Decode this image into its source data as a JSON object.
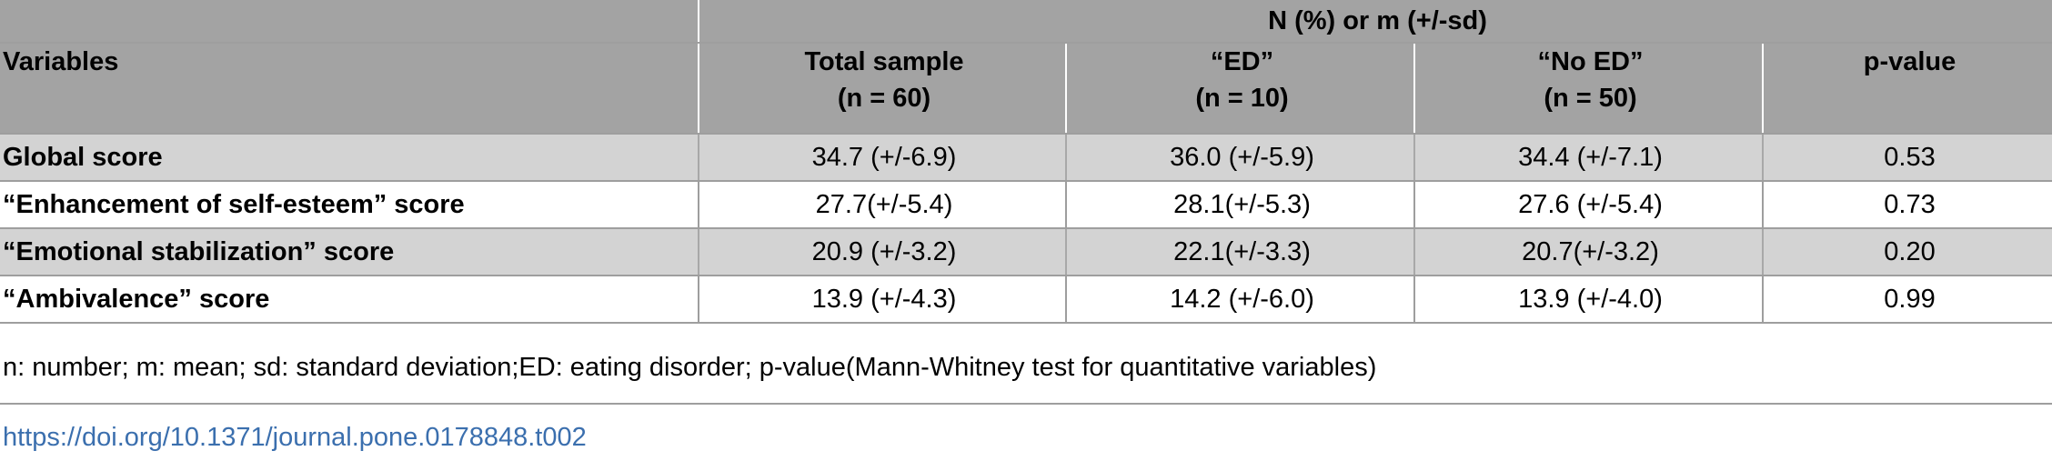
{
  "table": {
    "group_header": "N (%) or m (+/-sd)",
    "columns": [
      {
        "line1": "Variables",
        "line2": ""
      },
      {
        "line1": "Total sample",
        "line2": "(n = 60)"
      },
      {
        "line1": "“ED”",
        "line2": "(n = 10)"
      },
      {
        "line1": "“No ED”",
        "line2": "(n = 50)"
      },
      {
        "line1": "p-value",
        "line2": ""
      }
    ],
    "rows": [
      {
        "variable": "Global score",
        "total": "34.7 (+/-6.9)",
        "ed": "36.0 (+/-5.9)",
        "no_ed": "34.4 (+/-7.1)",
        "p": "0.53"
      },
      {
        "variable": "“Enhancement of self-esteem” score",
        "total": "27.7(+/-5.4)",
        "ed": "28.1(+/-5.3)",
        "no_ed": "27.6 (+/-5.4)",
        "p": "0.73"
      },
      {
        "variable": "“Emotional stabilization” score",
        "total": "20.9 (+/-3.2)",
        "ed": "22.1(+/-3.3)",
        "no_ed": "20.7(+/-3.2)",
        "p": "0.20"
      },
      {
        "variable": "“Ambivalence” score",
        "total": "13.9 (+/-4.3)",
        "ed": "14.2 (+/-6.0)",
        "no_ed": "13.9 (+/-4.0)",
        "p": "0.99"
      }
    ]
  },
  "footnote": "n: number; m: mean; sd: standard deviation;ED: eating disorder; p-value(Mann-Whitney test for quantitative variables)",
  "doi": "https://doi.org/10.1371/journal.pone.0178848.t002",
  "colors": {
    "header_bg": "#a3a3a3",
    "shaded_row_bg": "#d3d3d3",
    "link": "#3b6fae"
  }
}
